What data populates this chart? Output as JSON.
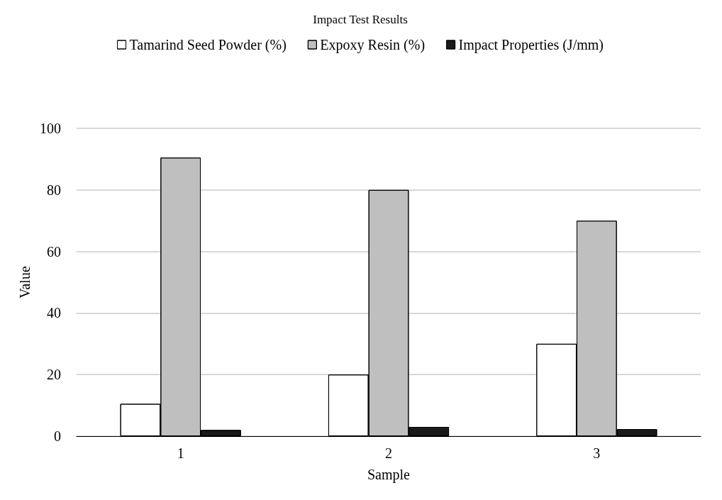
{
  "chart_data": {
    "type": "bar",
    "title": "Impact Test Results",
    "xlabel": "Sample",
    "ylabel": "Value",
    "categories": [
      "1",
      "2",
      "3"
    ],
    "series": [
      {
        "name": "Tamarind Seed Powder (%)",
        "color": "#ffffff",
        "values": [
          10.5,
          20,
          30
        ]
      },
      {
        "name": "Expoxy Resin (%)",
        "color": "#bfbfbf",
        "values": [
          90.5,
          80,
          70
        ]
      },
      {
        "name": "Impact Properties (J/mm)",
        "color": "#1a1a1a",
        "values": [
          2,
          3,
          2.3
        ]
      }
    ],
    "ylim": [
      0,
      100
    ],
    "yticks": [
      0,
      20,
      40,
      60,
      80,
      100
    ],
    "grid": "y",
    "legend": "top"
  }
}
